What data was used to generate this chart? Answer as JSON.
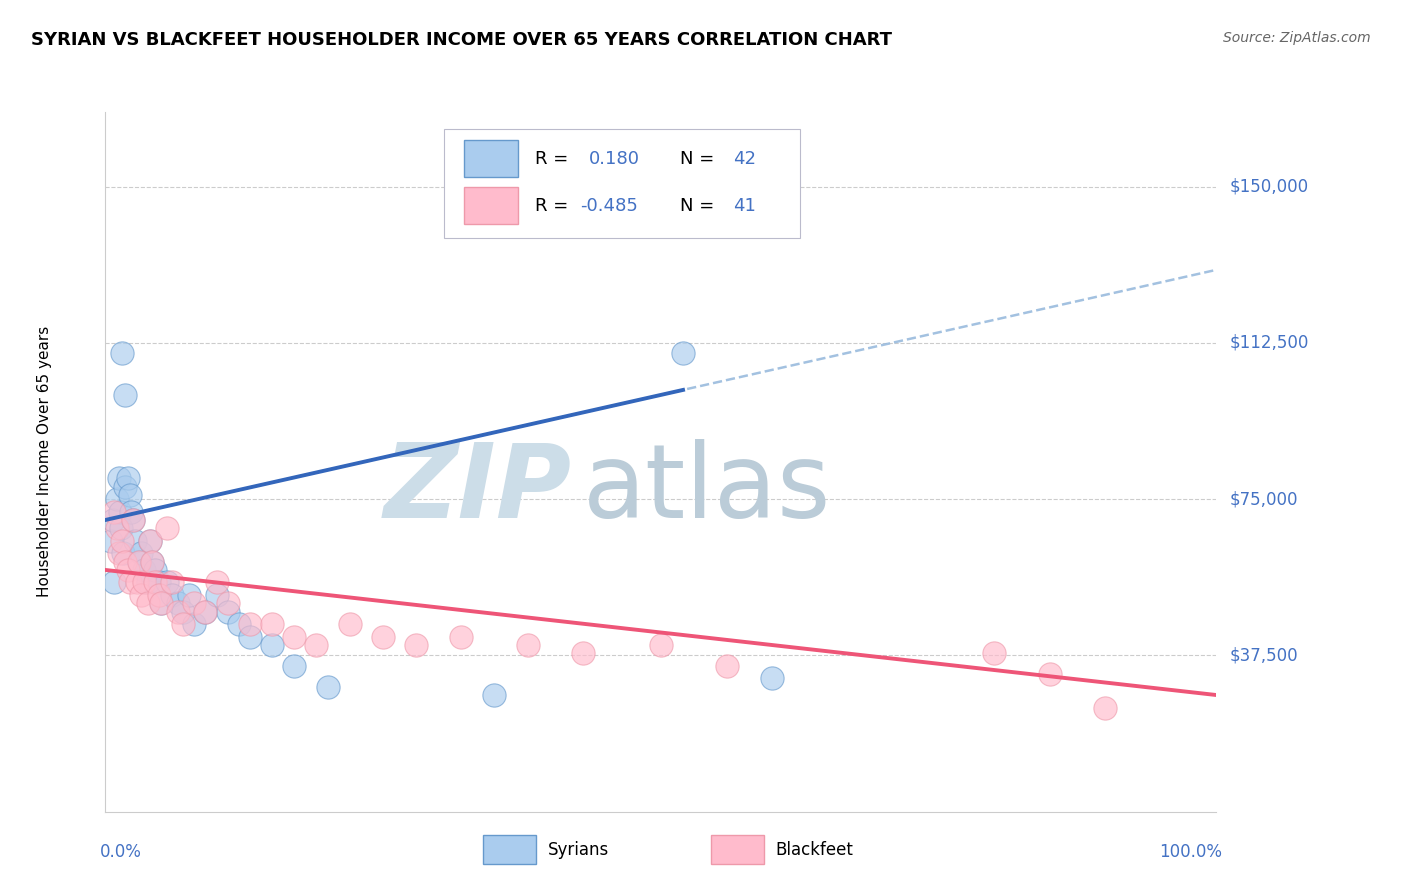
{
  "title": "SYRIAN VS BLACKFEET HOUSEHOLDER INCOME OVER 65 YEARS CORRELATION CHART",
  "source": "Source: ZipAtlas.com",
  "ylabel": "Householder Income Over 65 years",
  "ytick_labels": [
    "$150,000",
    "$112,500",
    "$75,000",
    "$37,500"
  ],
  "ytick_values": [
    150000,
    112500,
    75000,
    37500
  ],
  "ymin": 0,
  "ymax": 168000,
  "xmin": 0.0,
  "xmax": 1.0,
  "legend_r_syrians": "0.180",
  "legend_n_syrians": "42",
  "legend_r_blackfeet": "-0.485",
  "legend_n_blackfeet": "41",
  "color_syrians_fill": "#aaccee",
  "color_syrians_edge": "#6699cc",
  "color_blackfeet_fill": "#ffbbcc",
  "color_blackfeet_edge": "#ee99aa",
  "color_line_syrians": "#3366bb",
  "color_line_blackfeet": "#ee5577",
  "color_dashed": "#99bbdd",
  "color_grid": "#cccccc",
  "color_blue_text": "#4472c4",
  "color_pink_text": "#cc3355",
  "watermark_zip": "ZIP",
  "watermark_atlas": "atlas",
  "syrians_x": [
    0.005,
    0.007,
    0.008,
    0.01,
    0.012,
    0.013,
    0.014,
    0.015,
    0.016,
    0.018,
    0.018,
    0.02,
    0.022,
    0.023,
    0.025,
    0.027,
    0.03,
    0.032,
    0.035,
    0.038,
    0.04,
    0.042,
    0.045,
    0.048,
    0.05,
    0.055,
    0.06,
    0.065,
    0.07,
    0.075,
    0.08,
    0.09,
    0.1,
    0.11,
    0.12,
    0.13,
    0.15,
    0.17,
    0.2,
    0.35,
    0.52,
    0.6
  ],
  "syrians_y": [
    65000,
    70000,
    55000,
    75000,
    80000,
    72000,
    68000,
    110000,
    62000,
    100000,
    78000,
    80000,
    76000,
    72000,
    70000,
    65000,
    60000,
    62000,
    58000,
    55000,
    65000,
    60000,
    58000,
    55000,
    50000,
    55000,
    52000,
    50000,
    48000,
    52000,
    45000,
    48000,
    52000,
    48000,
    45000,
    42000,
    40000,
    35000,
    30000,
    28000,
    110000,
    32000
  ],
  "blackfeet_x": [
    0.008,
    0.01,
    0.012,
    0.015,
    0.018,
    0.02,
    0.022,
    0.025,
    0.028,
    0.03,
    0.032,
    0.035,
    0.038,
    0.04,
    0.042,
    0.045,
    0.048,
    0.05,
    0.055,
    0.06,
    0.065,
    0.07,
    0.08,
    0.09,
    0.1,
    0.11,
    0.13,
    0.15,
    0.17,
    0.19,
    0.22,
    0.25,
    0.28,
    0.32,
    0.38,
    0.43,
    0.5,
    0.56,
    0.8,
    0.85,
    0.9
  ],
  "blackfeet_y": [
    72000,
    68000,
    62000,
    65000,
    60000,
    58000,
    55000,
    70000,
    55000,
    60000,
    52000,
    55000,
    50000,
    65000,
    60000,
    55000,
    52000,
    50000,
    68000,
    55000,
    48000,
    45000,
    50000,
    48000,
    55000,
    50000,
    45000,
    45000,
    42000,
    40000,
    45000,
    42000,
    40000,
    42000,
    40000,
    38000,
    40000,
    35000,
    38000,
    33000,
    25000
  ]
}
